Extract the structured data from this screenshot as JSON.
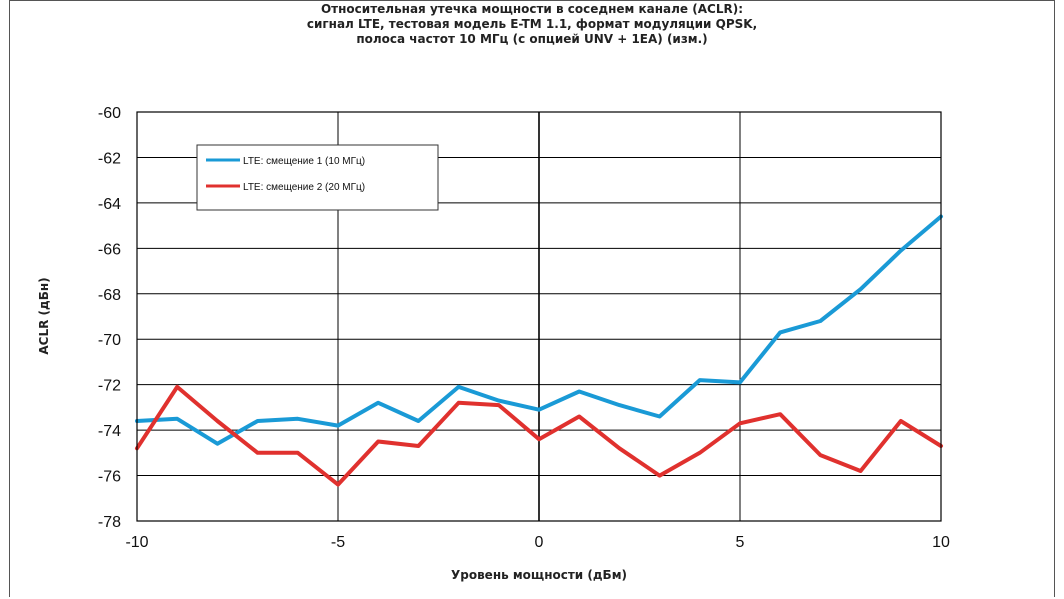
{
  "chart_data": {
    "type": "line",
    "title_lines": [
      "Относительная утечка мощности в соседнем канале (ACLR):",
      "сигнал LTE, тестовая модель E-TM 1.1, формат модуляции QPSK,",
      "полоса частот 10 МГц (с опцией UNV + 1EA) (изм.)"
    ],
    "xlabel": "Уровень мощности (дБм)",
    "ylabel": "ACLR (дБн)",
    "xlim": [
      -10,
      10
    ],
    "ylim": [
      -78,
      -60
    ],
    "xticks": [
      -10,
      -5,
      0,
      5,
      10
    ],
    "yticks": [
      -60,
      -62,
      -64,
      -66,
      -68,
      -70,
      -72,
      -74,
      -76,
      -78
    ],
    "x_tick_labels": [
      "-10",
      "-5",
      "0",
      "5",
      "10"
    ],
    "y_tick_labels": [
      "-60",
      "-62",
      "-64",
      "-66",
      "-68",
      "-70",
      "-72",
      "-74",
      "-76",
      "-78"
    ],
    "grid": true,
    "legend_position": "upper-left",
    "x": [
      -10,
      -9,
      -8,
      -7,
      -6,
      -5,
      -4,
      -3,
      -2,
      -1,
      0,
      1,
      2,
      3,
      4,
      5,
      6,
      7,
      8,
      9,
      10
    ],
    "series": [
      {
        "name": "LTE: смещение 1 (10 МГц)",
        "color": "#1a9ad6",
        "values": [
          -73.6,
          -73.5,
          -74.6,
          -73.6,
          -73.5,
          -73.8,
          -72.8,
          -73.6,
          -72.1,
          -72.7,
          -73.1,
          -72.3,
          -72.9,
          -73.4,
          -71.8,
          -71.9,
          -69.7,
          -69.2,
          -67.8,
          -66.1,
          -64.6
        ]
      },
      {
        "name": "LTE: смещение 2 (20 МГц)",
        "color": "#e0312e",
        "values": [
          -74.8,
          -72.1,
          -73.6,
          -75.0,
          -75.0,
          -76.4,
          -74.5,
          -74.7,
          -72.8,
          -72.9,
          -74.4,
          -73.4,
          -74.8,
          -76.0,
          -75.0,
          -73.7,
          -73.3,
          -75.1,
          -75.8,
          -73.6,
          -74.7
        ]
      }
    ]
  }
}
